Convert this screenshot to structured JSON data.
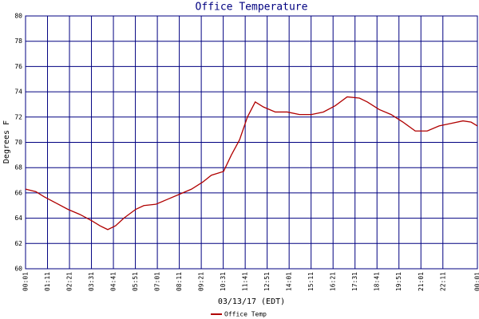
{
  "chart_data": {
    "type": "line",
    "title": "Office Temperature",
    "x_label": "03/13/17 (EDT)",
    "y_label": "Degrees F",
    "x": [
      1,
      34,
      60,
      98,
      136,
      174,
      212,
      238,
      263,
      288,
      314,
      352,
      378,
      416,
      454,
      492,
      530,
      568,
      593,
      632,
      657,
      683,
      708,
      733,
      759,
      797,
      835,
      874,
      912,
      950,
      988,
      1026,
      1065,
      1090,
      1128,
      1166,
      1204,
      1243,
      1281,
      1319,
      1357,
      1395,
      1421,
      1441
    ],
    "series": [
      {
        "name": "Office Temp",
        "color": "#b00000",
        "values": [
          66.3,
          66.1,
          65.7,
          65.2,
          64.7,
          64.3,
          63.8,
          63.4,
          63.1,
          63.4,
          64.0,
          64.7,
          65.0,
          65.1,
          65.5,
          65.9,
          66.3,
          66.9,
          67.4,
          67.7,
          69.0,
          70.2,
          72.0,
          73.2,
          72.8,
          72.4,
          72.4,
          72.2,
          72.2,
          72.4,
          72.9,
          73.6,
          73.5,
          73.2,
          72.6,
          72.2,
          71.6,
          70.9,
          70.9,
          71.3,
          71.5,
          71.7,
          71.6,
          71.3
        ]
      }
    ],
    "xlim": [
      1,
      1441
    ],
    "ylim": [
      60,
      80
    ],
    "xticks": [
      {
        "value": 1,
        "label": "00:01"
      },
      {
        "value": 71,
        "label": "01:11"
      },
      {
        "value": 141,
        "label": "02:21"
      },
      {
        "value": 211,
        "label": "03:31"
      },
      {
        "value": 281,
        "label": "04:41"
      },
      {
        "value": 351,
        "label": "05:51"
      },
      {
        "value": 421,
        "label": "07:01"
      },
      {
        "value": 491,
        "label": "08:11"
      },
      {
        "value": 561,
        "label": "09:21"
      },
      {
        "value": 631,
        "label": "10:31"
      },
      {
        "value": 701,
        "label": "11:41"
      },
      {
        "value": 771,
        "label": "12:51"
      },
      {
        "value": 841,
        "label": "14:01"
      },
      {
        "value": 911,
        "label": "15:11"
      },
      {
        "value": 981,
        "label": "16:21"
      },
      {
        "value": 1051,
        "label": "17:31"
      },
      {
        "value": 1121,
        "label": "18:41"
      },
      {
        "value": 1191,
        "label": "19:51"
      },
      {
        "value": 1261,
        "label": "21:01"
      },
      {
        "value": 1331,
        "label": "22:11"
      },
      {
        "value": 1441,
        "label": "00:01"
      }
    ],
    "yticks": [
      60,
      62,
      64,
      66,
      68,
      70,
      72,
      74,
      76,
      78,
      80
    ],
    "grid": true
  }
}
